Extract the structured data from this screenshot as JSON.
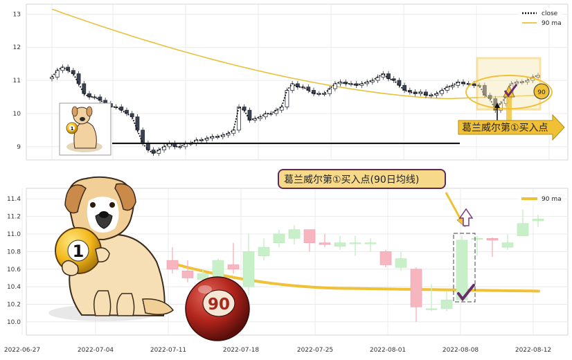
{
  "chart_data": [
    {
      "type": "candlestick",
      "panel": "top",
      "ylim": [
        8.6,
        13.3
      ],
      "yticks": [
        "9",
        "10",
        "11",
        "12",
        "13"
      ],
      "legend": {
        "placement": "top-right",
        "entries": [
          {
            "label": "close",
            "style": "dotted",
            "color": "#111111"
          },
          {
            "label": "90 ma",
            "style": "solid",
            "color": "#e8c13c"
          }
        ]
      },
      "close": [
        11.1,
        11.3,
        11.4,
        11.3,
        11.2,
        10.9,
        10.6,
        10.5,
        10.5,
        10.4,
        10.3,
        10.2,
        10.2,
        10.1,
        10.0,
        9.9,
        9.5,
        9.1,
        8.9,
        8.8,
        8.9,
        9.0,
        9.1,
        9.0,
        9.0,
        9.1,
        9.1,
        9.2,
        9.2,
        9.25,
        9.3,
        9.3,
        9.35,
        9.4,
        9.5,
        10.2,
        10.1,
        9.8,
        9.85,
        9.9,
        10.0,
        10.0,
        10.1,
        10.2,
        10.7,
        10.9,
        10.8,
        10.8,
        10.7,
        10.6,
        10.6,
        10.6,
        10.75,
        10.9,
        10.95,
        10.9,
        10.9,
        10.85,
        10.9,
        10.95,
        11.0,
        11.1,
        11.2,
        11.05,
        11.0,
        10.85,
        10.7,
        10.65,
        10.6,
        10.65,
        10.55,
        10.55,
        10.6,
        10.7,
        10.8,
        10.85,
        10.95,
        10.9,
        10.9,
        10.85,
        10.85,
        10.55,
        10.45,
        10.1,
        10.3,
        10.5,
        10.9,
        10.95,
        10.95,
        11.0,
        11.1,
        11.15
      ],
      "ma_start": 13.15,
      "ma_min": 10.45,
      "ma_end": 10.55,
      "support_level": 9.1,
      "annotation": "葛兰威尔第①买入点",
      "badge": "90",
      "ball_label": "1"
    },
    {
      "type": "candlestick",
      "panel": "bottom",
      "ylim": [
        9.85,
        11.52
      ],
      "yticks": [
        "10.0",
        "10.2",
        "10.4",
        "10.6",
        "10.8",
        "11.0",
        "11.2",
        "11.4"
      ],
      "xticks": [
        "2022-06-27",
        "2022-07-04",
        "2022-07-11",
        "2022-07-18",
        "2022-07-25",
        "2022-08-01",
        "2022-08-08",
        "2022-08-12"
      ],
      "legend": {
        "placement": "top-right",
        "entries": [
          {
            "label": "90 ma",
            "style": "solid",
            "color": "#f0c136"
          }
        ]
      },
      "candles": [
        {
          "o": 10.7,
          "h": 10.85,
          "l": 10.55,
          "c": 10.6
        },
        {
          "o": 10.58,
          "h": 10.7,
          "l": 10.45,
          "c": 10.5
        },
        {
          "o": 10.48,
          "h": 10.6,
          "l": 10.35,
          "c": 10.55
        },
        {
          "o": 10.5,
          "h": 10.72,
          "l": 10.4,
          "c": 10.7
        },
        {
          "o": 10.65,
          "h": 10.9,
          "l": 10.55,
          "c": 10.6
        },
        {
          "o": 10.4,
          "h": 11.0,
          "l": 10.3,
          "c": 10.8
        },
        {
          "o": 10.75,
          "h": 10.95,
          "l": 10.7,
          "c": 10.85
        },
        {
          "o": 10.9,
          "h": 11.05,
          "l": 10.85,
          "c": 11.0
        },
        {
          "o": 10.95,
          "h": 11.1,
          "l": 10.88,
          "c": 11.05
        },
        {
          "o": 11.05,
          "h": 11.05,
          "l": 10.8,
          "c": 10.9
        },
        {
          "o": 10.9,
          "h": 11.0,
          "l": 10.85,
          "c": 10.88
        },
        {
          "o": 10.86,
          "h": 10.98,
          "l": 10.82,
          "c": 10.9
        },
        {
          "o": 10.9,
          "h": 10.98,
          "l": 10.75,
          "c": 10.9
        },
        {
          "o": 10.9,
          "h": 10.95,
          "l": 10.8,
          "c": 10.9
        },
        {
          "o": 10.8,
          "h": 10.82,
          "l": 10.62,
          "c": 10.65
        },
        {
          "o": 10.62,
          "h": 10.8,
          "l": 10.58,
          "c": 10.72
        },
        {
          "o": 10.6,
          "h": 10.62,
          "l": 10.0,
          "c": 10.17
        },
        {
          "o": 10.15,
          "h": 10.43,
          "l": 10.12,
          "c": 10.15
        },
        {
          "o": 10.15,
          "h": 10.35,
          "l": 10.12,
          "c": 10.25
        },
        {
          "o": 10.25,
          "h": 10.98,
          "l": 10.25,
          "c": 10.93
        },
        {
          "o": 10.95,
          "h": 10.98,
          "l": 10.75,
          "c": 10.95
        },
        {
          "o": 10.95,
          "h": 10.96,
          "l": 10.74,
          "c": 10.93
        },
        {
          "o": 10.85,
          "h": 11.0,
          "l": 10.82,
          "c": 10.9
        },
        {
          "o": 10.98,
          "h": 11.28,
          "l": 10.98,
          "c": 11.12
        },
        {
          "o": 11.15,
          "h": 11.22,
          "l": 11.08,
          "c": 11.17
        }
      ],
      "ma_start": 10.67,
      "ma_mid": 10.38,
      "ma_end": 10.35,
      "annotation": "葛兰威尔第①买入点(90日均线)",
      "ball_label": "1",
      "ball_label_2": "90"
    }
  ]
}
